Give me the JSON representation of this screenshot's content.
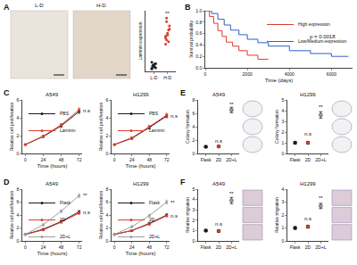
{
  "panels": [
    "A",
    "B",
    "C",
    "D",
    "E",
    "F"
  ],
  "image_labels": [
    "L-D",
    "H-D"
  ],
  "chart_data": [
    {
      "type": "scatter",
      "y_label": "Laminin expression",
      "categories": [
        "L-D",
        "H-D"
      ],
      "values": [
        [
          0.5,
          0.8,
          1.0,
          1.2,
          0.6,
          1.5,
          0.9,
          1.1,
          0.7,
          1.3,
          0.4,
          1.0
        ],
        [
          4.5,
          5.2,
          6.0,
          6.8,
          7.5,
          5.8,
          8.2,
          6.3,
          4.9,
          7.0,
          5.5,
          8.8
        ]
      ],
      "colors": [
        "#222222",
        "#e03a2f"
      ],
      "ylim": [
        0,
        10
      ],
      "tick_labels": "x",
      "annotations": [
        {
          "text": "**",
          "x": 1,
          "y": 9.6
        }
      ]
    },
    {
      "type": "line",
      "x_label": "Time (days)",
      "y_label": "Survival probability",
      "xlim": [
        0,
        7000
      ],
      "xticks": [
        0,
        2000,
        4000,
        6000
      ],
      "ylim": [
        0,
        1
      ],
      "yticks": [
        {
          "value": 0,
          "label": "0.0"
        },
        {
          "value": 0.2,
          "label": "0.2"
        },
        {
          "value": 0.4,
          "label": "0.4"
        },
        {
          "value": 0.6,
          "label": "0.6"
        },
        {
          "value": 0.8,
          "label": "0.8"
        },
        {
          "value": 1,
          "label": "1.0"
        }
      ],
      "legend": "top right",
      "series": [
        {
          "name": "High expression",
          "color": "#e03a2f",
          "line_style": "step",
          "x": [
            0,
            200,
            400,
            600,
            800,
            1000,
            1300,
            1600,
            2000,
            2500,
            3000
          ],
          "values": [
            1,
            0.9,
            0.78,
            0.65,
            0.55,
            0.45,
            0.38,
            0.3,
            0.22,
            0.15,
            0.15
          ]
        },
        {
          "name": "Low/Medium-expression",
          "color": "#2f5fd0",
          "line_style": "step",
          "x": [
            0,
            300,
            600,
            900,
            1200,
            1600,
            2000,
            2500,
            3000,
            4000,
            5000,
            6000,
            6800
          ],
          "values": [
            1,
            0.95,
            0.85,
            0.75,
            0.66,
            0.58,
            0.5,
            0.44,
            0.38,
            0.3,
            0.25,
            0.2,
            0.2
          ]
        }
      ],
      "annotations": [
        {
          "text": "p = 0.0018",
          "x": 4800,
          "y": 0.55
        }
      ]
    },
    {
      "type": "line",
      "title": "A549",
      "x_label": "Time (hours)",
      "y_label": "Relative cell proliferation",
      "x": [
        0,
        24,
        48,
        72
      ],
      "xlim": [
        -4,
        76
      ],
      "xticks": [
        0,
        24,
        48,
        72
      ],
      "ylim": [
        0,
        6
      ],
      "yticks": [
        0,
        2,
        4,
        6
      ],
      "legend": "top left",
      "series": [
        {
          "name": "PBS",
          "color": "#1a1a1a",
          "values": [
            1,
            1.9,
            3.1,
            4.7
          ],
          "errors": [
            0.05,
            0.1,
            0.15,
            0.2
          ]
        },
        {
          "name": "Laminin",
          "color": "#e03a2f",
          "values": [
            1,
            1.95,
            3.2,
            4.9
          ],
          "errors": [
            0.05,
            0.1,
            0.15,
            0.2
          ]
        }
      ],
      "annotations": [
        {
          "text": "n.s",
          "x": 72,
          "y": 4.8
        }
      ]
    },
    {
      "type": "line",
      "title": "H1299",
      "x_label": "Time (hours)",
      "y_label": "Relative cell proliferation",
      "x": [
        0,
        24,
        48,
        72
      ],
      "xlim": [
        -4,
        76
      ],
      "xticks": [
        0,
        24,
        48,
        72
      ],
      "ylim": [
        0,
        6
      ],
      "yticks": [
        0,
        2,
        4,
        6
      ],
      "legend": "top left",
      "series": [
        {
          "name": "PBS",
          "color": "#1a1a1a",
          "values": [
            1,
            1.7,
            2.9,
            4.2
          ],
          "errors": [
            0.05,
            0.1,
            0.15,
            0.2
          ]
        },
        {
          "name": "Laminin",
          "color": "#e03a2f",
          "values": [
            1,
            1.75,
            3.0,
            4.3
          ],
          "errors": [
            0.05,
            0.1,
            0.15,
            0.2
          ]
        }
      ],
      "annotations": [
        {
          "text": "n.s",
          "x": 72,
          "y": 4.25
        }
      ]
    },
    {
      "type": "line",
      "title": "A549",
      "x_label": "Time (hours)",
      "y_label": "Relative cell proliferation",
      "x": [
        0,
        24,
        48,
        72
      ],
      "xlim": [
        -4,
        76
      ],
      "xticks": [
        0,
        24,
        48,
        72
      ],
      "ylim": [
        0,
        8
      ],
      "yticks": [
        0,
        2,
        4,
        6,
        8
      ],
      "legend": "top left",
      "series": [
        {
          "name": "Flask",
          "color": "#1a1a1a",
          "values": [
            1,
            1.8,
            3.0,
            4.5
          ],
          "errors": [
            0.05,
            0.1,
            0.15,
            0.2
          ]
        },
        {
          "name": "2D",
          "color": "#e03a2f",
          "values": [
            1,
            1.7,
            2.9,
            4.3
          ],
          "errors": [
            0.05,
            0.1,
            0.15,
            0.2
          ]
        },
        {
          "name": "2D+L",
          "color": "#9e9e9e",
          "values": [
            1,
            2.5,
            4.6,
            7.0
          ],
          "errors": [
            0.05,
            0.15,
            0.2,
            0.3
          ]
        }
      ],
      "annotations": [
        {
          "text": "**",
          "x": 72,
          "y": 7.0
        },
        {
          "text": "n.s",
          "x": 72,
          "y": 4.4
        }
      ]
    },
    {
      "type": "line",
      "title": "H1299",
      "x_label": "Time (hours)",
      "y_label": "Relative cell proliferation",
      "x": [
        0,
        24,
        48,
        72
      ],
      "xlim": [
        -4,
        76
      ],
      "xticks": [
        0,
        24,
        48,
        72
      ],
      "ylim": [
        0,
        8
      ],
      "yticks": [
        0,
        2,
        4,
        6,
        8
      ],
      "legend": "top left",
      "series": [
        {
          "name": "Flask",
          "color": "#1a1a1a",
          "values": [
            1,
            1.6,
            2.7,
            4.0
          ],
          "errors": [
            0.05,
            0.1,
            0.15,
            0.2
          ]
        },
        {
          "name": "2D",
          "color": "#e03a2f",
          "values": [
            1,
            1.6,
            2.6,
            3.9
          ],
          "errors": [
            0.05,
            0.1,
            0.15,
            0.2
          ]
        },
        {
          "name": "2D+L",
          "color": "#9e9e9e",
          "values": [
            1,
            2.2,
            3.9,
            6.0
          ],
          "errors": [
            0.05,
            0.15,
            0.2,
            0.3
          ]
        }
      ],
      "annotations": [
        {
          "text": "**",
          "x": 72,
          "y": 6.0
        },
        {
          "text": "n.s",
          "x": 72,
          "y": 3.9
        }
      ]
    },
    {
      "type": "scatter",
      "title": "A549",
      "y_label": "Colony formation",
      "categories": [
        "Flask",
        "2D",
        "2D+L"
      ],
      "values": [
        1,
        1.05,
        6.5
      ],
      "errors": [
        0.1,
        0.1,
        0.4
      ],
      "colors": [
        "#1a1a1a",
        "#e03a2f",
        "#9e9e9e"
      ],
      "ylim": [
        0,
        8
      ],
      "yticks": [
        0,
        2,
        4,
        6,
        8
      ],
      "annotations": [
        {
          "text": "n.s",
          "x": 1,
          "y": 1.9
        },
        {
          "text": "**",
          "x": 2,
          "y": 7.4
        }
      ]
    },
    {
      "type": "scatter",
      "title": "H1299",
      "y_label": "Colony formation",
      "categories": [
        "Flask",
        "2D",
        "2D+L"
      ],
      "values": [
        1,
        1.0,
        3.6
      ],
      "errors": [
        0.1,
        0.1,
        0.3
      ],
      "colors": [
        "#1a1a1a",
        "#e03a2f",
        "#9e9e9e"
      ],
      "ylim": [
        0,
        5
      ],
      "yticks": [
        0,
        1,
        2,
        3,
        4,
        5
      ],
      "annotations": [
        {
          "text": "n.s",
          "x": 1,
          "y": 1.8
        },
        {
          "text": "**",
          "x": 2,
          "y": 4.3
        }
      ]
    },
    {
      "type": "scatter",
      "title": "A549",
      "y_label": "Relative migration",
      "categories": [
        "Flask",
        "2D",
        "2D+L"
      ],
      "values": [
        1,
        0.95,
        3.9
      ],
      "errors": [
        0.1,
        0.1,
        0.3
      ],
      "colors": [
        "#1a1a1a",
        "#e03a2f",
        "#9e9e9e"
      ],
      "ylim": [
        0,
        5
      ],
      "yticks": [
        0,
        1,
        2,
        3,
        4,
        5
      ],
      "annotations": [
        {
          "text": "n.s",
          "x": 1,
          "y": 1.6
        },
        {
          "text": "**",
          "x": 2,
          "y": 4.6
        }
      ]
    },
    {
      "type": "scatter",
      "title": "H1299",
      "y_label": "Relative migration",
      "categories": [
        "Flask",
        "2D",
        "2D+L"
      ],
      "values": [
        1,
        1.1,
        2.7
      ],
      "errors": [
        0.1,
        0.1,
        0.2
      ],
      "colors": [
        "#1a1a1a",
        "#e03a2f",
        "#9e9e9e"
      ],
      "ylim": [
        0,
        4
      ],
      "yticks": [
        0,
        1,
        2,
        3,
        4
      ],
      "annotations": [
        {
          "text": "n.s",
          "x": 1,
          "y": 1.7
        },
        {
          "text": "**",
          "x": 2,
          "y": 3.3
        }
      ]
    }
  ]
}
